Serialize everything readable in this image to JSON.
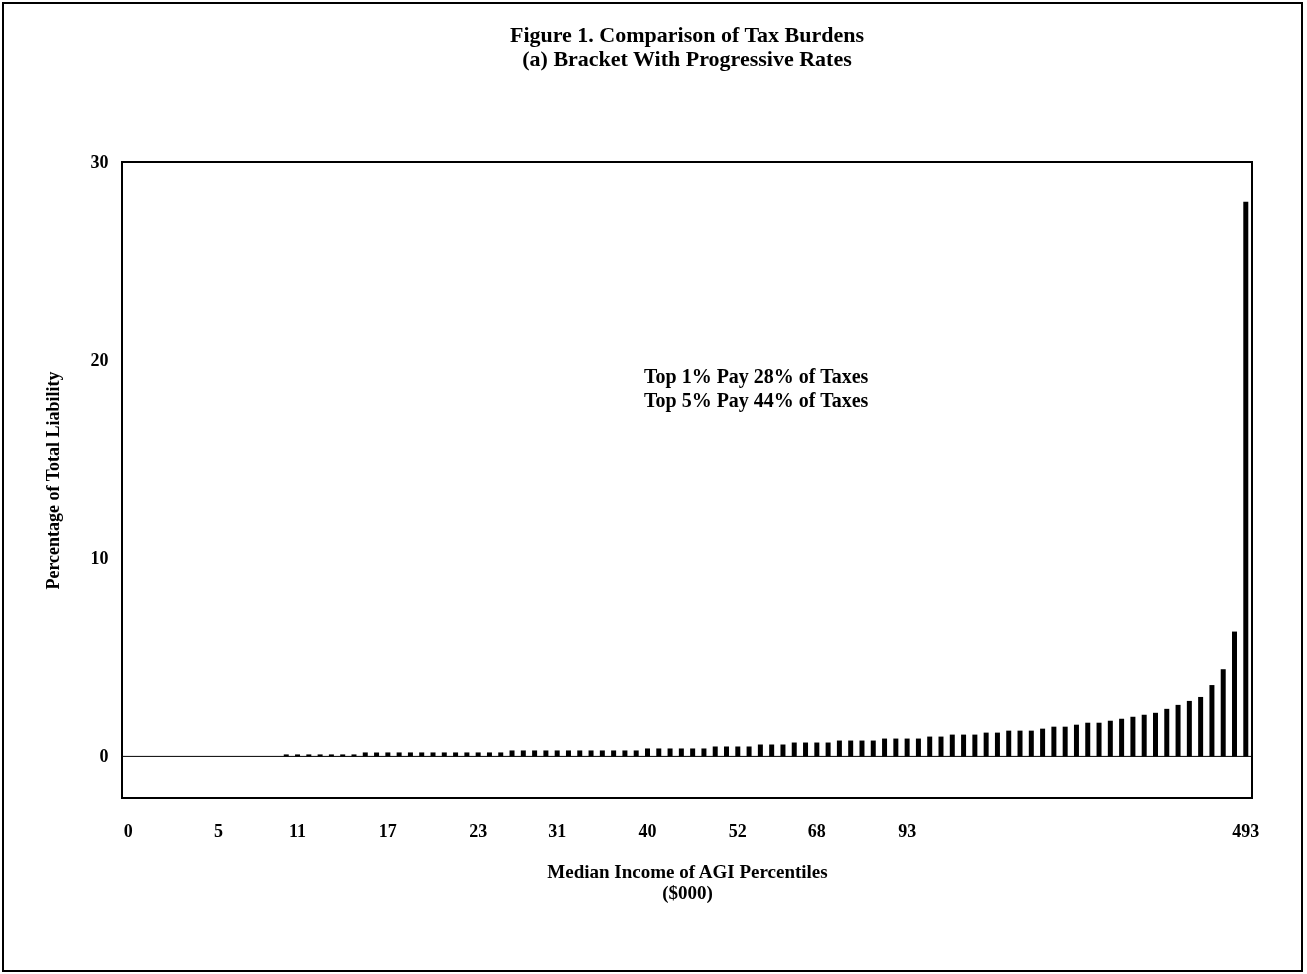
{
  "chart_data": {
    "type": "bar",
    "title": "Figure 1. Comparison of Tax Burdens",
    "subtitle": "(a) Bracket With Progressive Rates",
    "xlabel": "Median Income of AGI Percentiles\n($000)",
    "ylabel": "Percentage of Total Liability",
    "categories": [
      "0",
      null,
      null,
      null,
      null,
      null,
      null,
      null,
      "5",
      null,
      null,
      null,
      null,
      null,
      null,
      "11",
      null,
      null,
      null,
      null,
      null,
      null,
      null,
      "17",
      null,
      null,
      null,
      null,
      null,
      null,
      null,
      "23",
      null,
      null,
      null,
      null,
      null,
      null,
      "31",
      null,
      null,
      null,
      null,
      null,
      null,
      null,
      "40",
      null,
      null,
      null,
      null,
      null,
      null,
      null,
      "52",
      null,
      null,
      null,
      null,
      null,
      null,
      "68",
      null,
      null,
      null,
      null,
      null,
      null,
      null,
      "93",
      null,
      null,
      null,
      null,
      null,
      null,
      null,
      null,
      null,
      null,
      null,
      null,
      null,
      null,
      null,
      null,
      null,
      null,
      null,
      null,
      null,
      null,
      null,
      null,
      null,
      null,
      null,
      null,
      null,
      "493"
    ],
    "values": [
      0,
      0,
      0,
      0,
      0,
      0,
      0,
      0,
      0,
      0,
      0,
      0,
      0,
      0,
      0.1,
      0.1,
      0.1,
      0.1,
      0.1,
      0.1,
      0.1,
      0.2,
      0.2,
      0.2,
      0.2,
      0.2,
      0.2,
      0.2,
      0.2,
      0.2,
      0.2,
      0.2,
      0.2,
      0.2,
      0.3,
      0.3,
      0.3,
      0.3,
      0.3,
      0.3,
      0.3,
      0.3,
      0.3,
      0.3,
      0.3,
      0.3,
      0.4,
      0.4,
      0.4,
      0.4,
      0.4,
      0.4,
      0.5,
      0.5,
      0.5,
      0.5,
      0.6,
      0.6,
      0.6,
      0.7,
      0.7,
      0.7,
      0.7,
      0.8,
      0.8,
      0.8,
      0.8,
      0.9,
      0.9,
      0.9,
      0.9,
      1.0,
      1.0,
      1.1,
      1.1,
      1.1,
      1.2,
      1.2,
      1.3,
      1.3,
      1.3,
      1.4,
      1.5,
      1.5,
      1.6,
      1.7,
      1.7,
      1.8,
      1.9,
      2.0,
      2.1,
      2.2,
      2.4,
      2.6,
      2.8,
      3.0,
      3.6,
      4.4,
      6.3,
      28
    ],
    "color": "#000000",
    "ylim": [
      -2.1,
      30
    ],
    "yticks": [
      0,
      10,
      20,
      30
    ],
    "grid": false,
    "ref_lines": [
      {
        "axis": "y",
        "value": 0
      }
    ],
    "annotations": [
      "Top 1% Pay 28% of Taxes\nTop 5% Pay 44% of Taxes"
    ]
  }
}
